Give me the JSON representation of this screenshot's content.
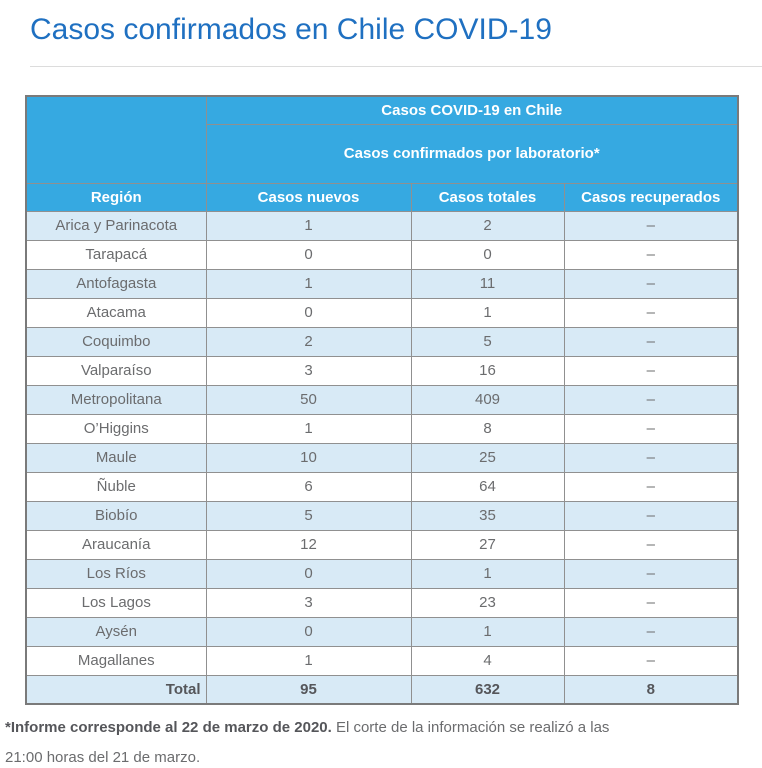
{
  "page": {
    "title": "Casos confirmados en Chile COVID-19"
  },
  "table": {
    "header": {
      "title": "Casos COVID-19 en Chile",
      "subtitle": "Casos confirmados por laboratorio*",
      "columns": [
        "Región",
        "Casos nuevos",
        "Casos totales",
        "Casos recuperados"
      ]
    },
    "rows": [
      {
        "region": "Arica y Parinacota",
        "nuevos": "1",
        "totales": "2",
        "recuperados": "–"
      },
      {
        "region": "Tarapacá",
        "nuevos": "0",
        "totales": "0",
        "recuperados": "–"
      },
      {
        "region": "Antofagasta",
        "nuevos": "1",
        "totales": "11",
        "recuperados": "–"
      },
      {
        "region": "Atacama",
        "nuevos": "0",
        "totales": "1",
        "recuperados": "–"
      },
      {
        "region": "Coquimbo",
        "nuevos": "2",
        "totales": "5",
        "recuperados": "–"
      },
      {
        "region": "Valparaíso",
        "nuevos": "3",
        "totales": "16",
        "recuperados": "–"
      },
      {
        "region": "Metropolitana",
        "nuevos": "50",
        "totales": "409",
        "recuperados": "–"
      },
      {
        "region": "O’Higgins",
        "nuevos": "1",
        "totales": "8",
        "recuperados": "–"
      },
      {
        "region": "Maule",
        "nuevos": "10",
        "totales": "25",
        "recuperados": "–"
      },
      {
        "region": "Ñuble",
        "nuevos": "6",
        "totales": "64",
        "recuperados": "–"
      },
      {
        "region": "Biobío",
        "nuevos": "5",
        "totales": "35",
        "recuperados": "–"
      },
      {
        "region": "Araucanía",
        "nuevos": "12",
        "totales": "27",
        "recuperados": "–"
      },
      {
        "region": "Los Ríos",
        "nuevos": "0",
        "totales": "1",
        "recuperados": "–"
      },
      {
        "region": "Los Lagos",
        "nuevos": "3",
        "totales": "23",
        "recuperados": "–"
      },
      {
        "region": "Aysén",
        "nuevos": "0",
        "totales": "1",
        "recuperados": "–"
      },
      {
        "region": "Magallanes",
        "nuevos": "1",
        "totales": "4",
        "recuperados": "–"
      }
    ],
    "total": {
      "label": "Total",
      "nuevos": "95",
      "totales": "632",
      "recuperados": "8"
    }
  },
  "footnote": {
    "bold": "*Informe corresponde al 22 de marzo de 2020.",
    "regular": " El corte de la información se realizó a las",
    "line2": "21:00 horas del 21 de marzo."
  },
  "colors": {
    "title_blue": "#1f70c1",
    "header_blue": "#36a9e1",
    "row_light_blue": "#d8eaf6",
    "inner_border": "#909090",
    "outer_border": "#7a7a7a",
    "body_text": "#6b6c6e",
    "total_text": "#55565a",
    "divider_gray": "#dcdcdc"
  }
}
